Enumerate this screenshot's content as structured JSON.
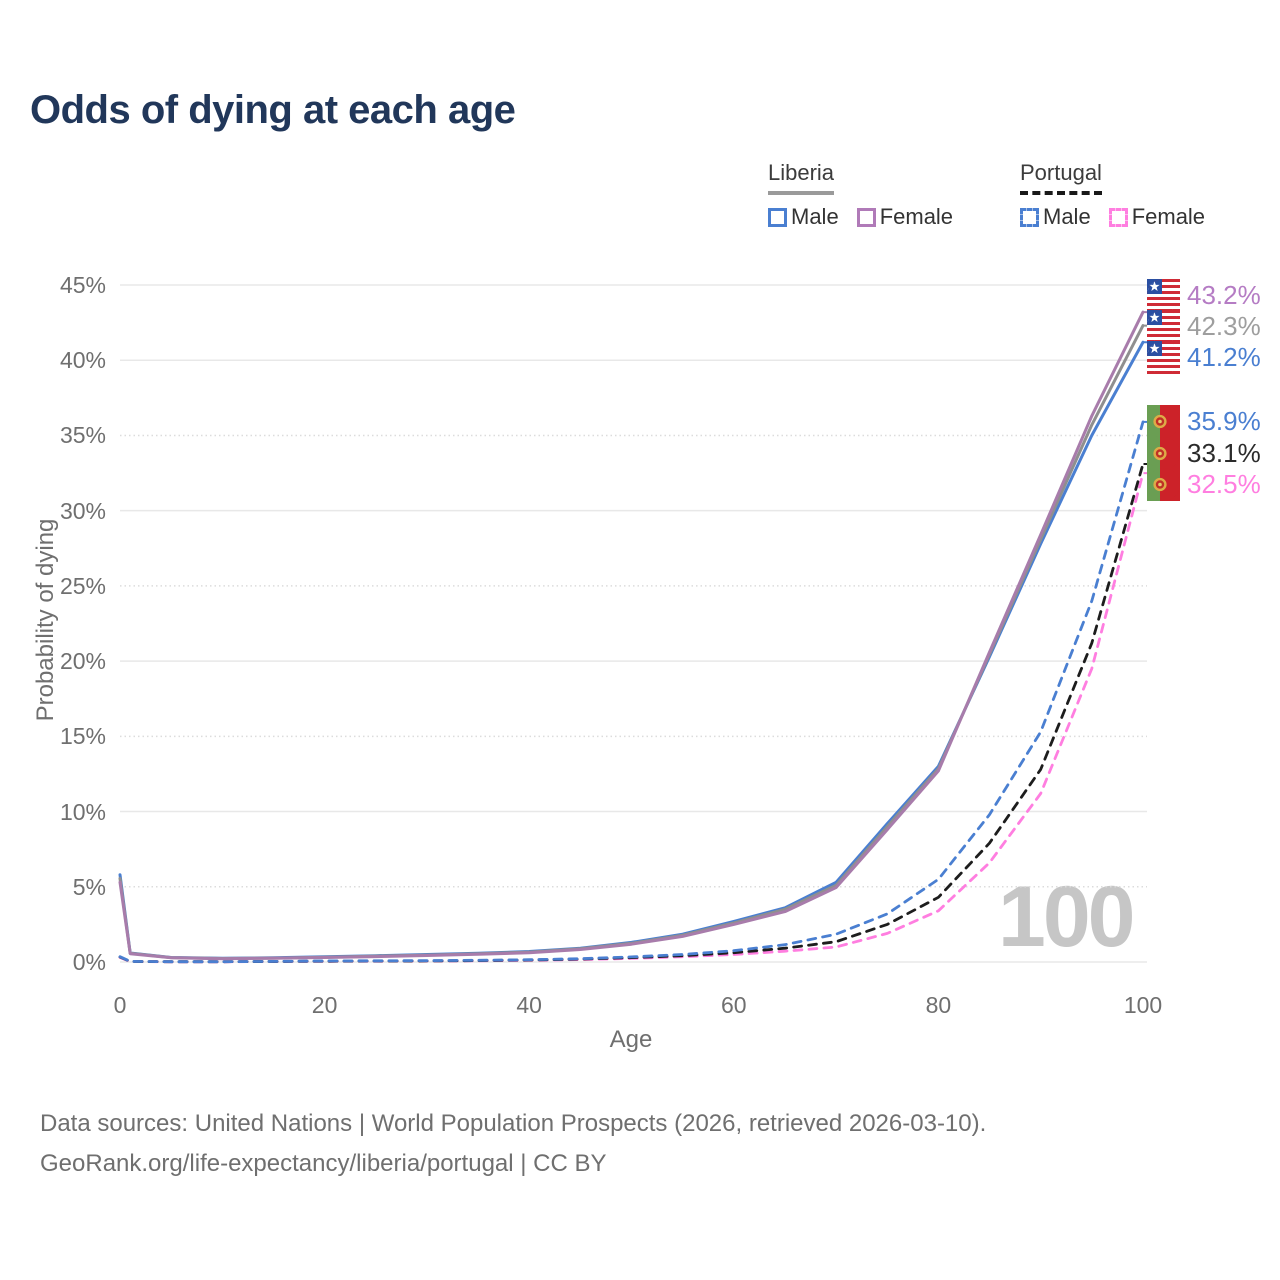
{
  "title": "Odds of dying at each age",
  "watermark": "100",
  "legend": {
    "groups": [
      {
        "country": "Liberia",
        "underline": "solid",
        "items": [
          {
            "label": "Male",
            "color": "#4a7fd1",
            "dashed": false
          },
          {
            "label": "Female",
            "color": "#b07ab8",
            "dashed": false
          }
        ]
      },
      {
        "country": "Portugal",
        "underline": "dashed",
        "items": [
          {
            "label": "Male",
            "color": "#4a7fd1",
            "dashed": true
          },
          {
            "label": "Female",
            "color": "#ff7ee0",
            "dashed": true
          }
        ]
      }
    ]
  },
  "footer": {
    "line1": "Data sources: United Nations | World Population Prospects (2026, retrieved 2026-03-10).",
    "line2": "GeoRank.org/life-expectancy/liberia/portugal | CC BY"
  },
  "chart_data": {
    "type": "line",
    "title": "Odds of dying at each age",
    "xlabel": "Age",
    "ylabel": "Probability of dying",
    "xlim": [
      0,
      100
    ],
    "ylim": [
      0,
      45
    ],
    "x_ticks": [
      0,
      20,
      40,
      60,
      80,
      100
    ],
    "x_tick_labels": [
      "0",
      "20",
      "40",
      "60",
      "80",
      "100"
    ],
    "y_ticks": [
      0,
      5,
      10,
      15,
      20,
      25,
      30,
      35,
      40,
      45
    ],
    "y_tick_labels": [
      "0%",
      "5%",
      "10%",
      "15%",
      "20%",
      "25%",
      "30%",
      "35%",
      "40%",
      "45%"
    ],
    "grid": "horizontal",
    "legend_position": "top-right",
    "age_marker": "100",
    "ages": [
      0,
      1,
      5,
      10,
      15,
      20,
      25,
      30,
      35,
      40,
      45,
      50,
      55,
      60,
      65,
      70,
      75,
      80,
      85,
      90,
      95,
      100
    ],
    "series": [
      {
        "name": "Portugal Female",
        "country": "Portugal",
        "sex": "Female",
        "color": "#ff7ee0",
        "label_color": "#ff7ee0",
        "dashed": true,
        "flag": "portugal",
        "end_label": "32.5%",
        "values": [
          0.3,
          0.03,
          0.015,
          0.015,
          0.03,
          0.045,
          0.055,
          0.065,
          0.08,
          0.11,
          0.16,
          0.24,
          0.35,
          0.5,
          0.72,
          1.0,
          1.9,
          3.4,
          6.6,
          11.2,
          19.5,
          32.5
        ]
      },
      {
        "name": "Portugal Both",
        "country": "Portugal",
        "sex": "Both",
        "color": "#1d1d1d",
        "label_color": "#2b2b2b",
        "dashed": true,
        "flag": "portugal",
        "end_label": "33.1%",
        "values": [
          0.33,
          0.035,
          0.018,
          0.018,
          0.035,
          0.055,
          0.065,
          0.075,
          0.095,
          0.13,
          0.19,
          0.29,
          0.42,
          0.62,
          0.92,
          1.35,
          2.5,
          4.3,
          7.9,
          12.8,
          21.2,
          33.1
        ]
      },
      {
        "name": "Portugal Male",
        "country": "Portugal",
        "sex": "Male",
        "color": "#4a7fd1",
        "label_color": "#4a7fd1",
        "dashed": true,
        "flag": "portugal",
        "end_label": "35.9%",
        "values": [
          0.35,
          0.04,
          0.02,
          0.02,
          0.04,
          0.07,
          0.08,
          0.09,
          0.11,
          0.15,
          0.22,
          0.34,
          0.5,
          0.75,
          1.15,
          1.85,
          3.2,
          5.5,
          9.8,
          15.3,
          24.0,
          35.9
        ]
      },
      {
        "name": "Liberia Male",
        "country": "Liberia",
        "sex": "Male",
        "color": "#4a7fd1",
        "label_color": "#4a7fd1",
        "dashed": false,
        "flag": "liberia",
        "end_label": "41.2%",
        "values": [
          5.8,
          0.6,
          0.3,
          0.25,
          0.28,
          0.35,
          0.42,
          0.5,
          0.58,
          0.7,
          0.92,
          1.3,
          1.85,
          2.7,
          3.6,
          5.3,
          9.2,
          13.0,
          20.3,
          27.8,
          35.0,
          41.2
        ]
      },
      {
        "name": "Liberia Both",
        "country": "Liberia",
        "sex": "Both",
        "color": "#8f8f8f",
        "label_color": "#9e9e9e",
        "dashed": false,
        "flag": "liberia",
        "end_label": "42.3%",
        "values": [
          5.55,
          0.58,
          0.29,
          0.23,
          0.26,
          0.32,
          0.39,
          0.46,
          0.55,
          0.66,
          0.88,
          1.24,
          1.78,
          2.6,
          3.5,
          5.1,
          9.0,
          12.85,
          20.45,
          28.1,
          35.7,
          42.3
        ]
      },
      {
        "name": "Liberia Female",
        "country": "Liberia",
        "sex": "Female",
        "color": "#a87cab",
        "label_color": "#b57cc4",
        "dashed": false,
        "flag": "liberia",
        "end_label": "43.2%",
        "values": [
          5.3,
          0.55,
          0.28,
          0.22,
          0.25,
          0.3,
          0.36,
          0.43,
          0.51,
          0.62,
          0.83,
          1.18,
          1.7,
          2.5,
          3.35,
          4.95,
          8.8,
          12.7,
          20.6,
          28.4,
          36.3,
          43.2
        ]
      }
    ]
  }
}
